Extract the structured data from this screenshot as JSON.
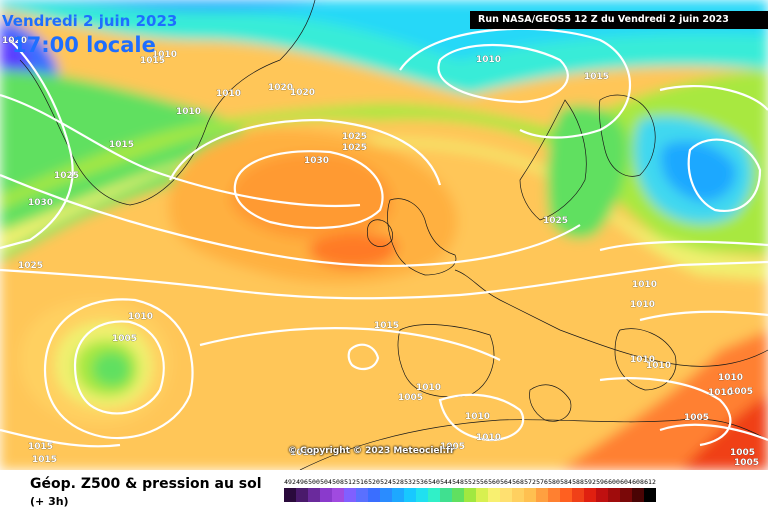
{
  "header": {
    "date": "Vendredi 2 juin 2023",
    "time": "17:00 locale",
    "run": "Run NASA/GEOS5 12 Z du Vendredi 2 juin 2023"
  },
  "copyright": "© Copyright © 2023 Meteociel.fr",
  "footer": {
    "title": "Géop. Z500 & pression au sol",
    "subtitle": "(+ 3h)"
  },
  "scale": {
    "labels": [
      "492",
      "496",
      "500",
      "504",
      "508",
      "512",
      "516",
      "520",
      "524",
      "528",
      "532",
      "536",
      "540",
      "544",
      "548",
      "552",
      "556",
      "560",
      "564",
      "568",
      "572",
      "576",
      "580",
      "584",
      "588",
      "592",
      "596",
      "600",
      "604",
      "608",
      "612"
    ],
    "colors": [
      "#2a0a3c",
      "#4a1a6c",
      "#6a2a9c",
      "#8a3acc",
      "#a04ae0",
      "#8060ff",
      "#5a70ff",
      "#3a6eff",
      "#2a8cff",
      "#1ea8ff",
      "#18c8ff",
      "#20e0f0",
      "#30f0c8",
      "#40e090",
      "#60e060",
      "#a0e840",
      "#d8f050",
      "#f8f070",
      "#ffe070",
      "#ffd060",
      "#ffc050",
      "#ffa040",
      "#ff8030",
      "#ff6020",
      "#f04018",
      "#e02010",
      "#c01010",
      "#a00c0c",
      "#7a0808",
      "#4a0404",
      "#000000"
    ]
  },
  "pressure_labels": [
    "1020",
    "1010",
    "1015",
    "1010",
    "1015",
    "1010",
    "1020",
    "1020",
    "1010",
    "1025",
    "1025",
    "1015",
    "1030",
    "1025",
    "1030",
    "1025",
    "1010",
    "1005",
    "1015",
    "1025",
    "1010",
    "1010",
    "1010",
    "1010",
    "1010",
    "1005",
    "1015",
    "1015",
    "1010",
    "1005",
    "1010",
    "1005",
    "1010",
    "1015",
    "1005",
    "1010",
    "1005",
    "1005"
  ]
}
